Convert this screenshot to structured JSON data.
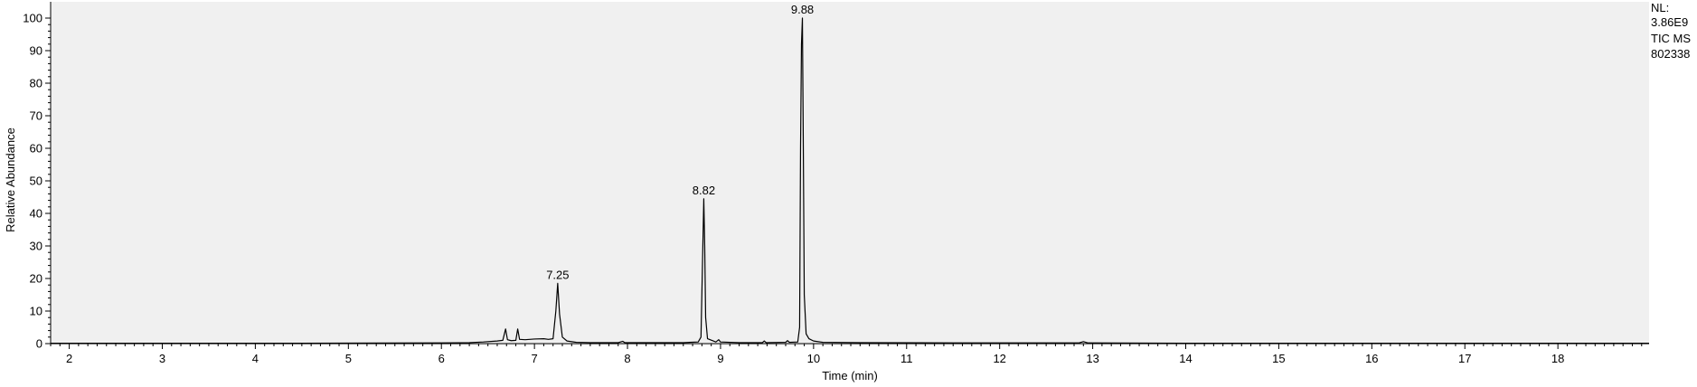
{
  "chart_data": {
    "type": "line",
    "xlabel": "Time (min)",
    "ylabel": "Relative Abundance",
    "xlim": [
      1.8,
      18.98
    ],
    "ylim": [
      0,
      100
    ],
    "xticks": [
      2,
      3,
      4,
      5,
      6,
      7,
      8,
      9,
      10,
      11,
      12,
      13,
      14,
      15,
      16,
      17,
      18
    ],
    "yticks": [
      0,
      10,
      20,
      30,
      40,
      50,
      60,
      70,
      80,
      90,
      100
    ],
    "info_text": [
      "NL:",
      "3.86E9",
      "TIC  MS",
      "802338"
    ],
    "colors": {
      "plot_background": "#f0f0f0",
      "trace": "#000000",
      "axis": "#000000"
    },
    "peak_labels": [
      {
        "label": "7.25",
        "x": 7.25,
        "y": 18.5
      },
      {
        "label": "8.82",
        "x": 8.82,
        "y": 44.5
      },
      {
        "label": "9.88",
        "x": 9.88,
        "y": 100
      }
    ],
    "series": [
      {
        "values": [
          [
            1.8,
            0.1
          ],
          [
            3.0,
            0.1
          ],
          [
            4.5,
            0.1
          ],
          [
            6.0,
            0.2
          ],
          [
            6.3,
            0.3
          ],
          [
            6.45,
            0.5
          ],
          [
            6.6,
            0.8
          ],
          [
            6.66,
            1.0
          ],
          [
            6.69,
            4.5
          ],
          [
            6.71,
            1.2
          ],
          [
            6.75,
            0.9
          ],
          [
            6.8,
            1.0
          ],
          [
            6.82,
            4.5
          ],
          [
            6.84,
            1.3
          ],
          [
            6.9,
            1.2
          ],
          [
            7.0,
            1.4
          ],
          [
            7.1,
            1.5
          ],
          [
            7.15,
            1.3
          ],
          [
            7.2,
            1.5
          ],
          [
            7.23,
            10.0
          ],
          [
            7.25,
            18.5
          ],
          [
            7.27,
            9.0
          ],
          [
            7.3,
            2.0
          ],
          [
            7.35,
            0.8
          ],
          [
            7.45,
            0.4
          ],
          [
            7.6,
            0.3
          ],
          [
            7.9,
            0.3
          ],
          [
            7.95,
            0.7
          ],
          [
            7.97,
            0.3
          ],
          [
            8.3,
            0.3
          ],
          [
            8.6,
            0.3
          ],
          [
            8.76,
            0.5
          ],
          [
            8.79,
            2.0
          ],
          [
            8.81,
            30.0
          ],
          [
            8.82,
            44.5
          ],
          [
            8.83,
            30.0
          ],
          [
            8.84,
            8.0
          ],
          [
            8.86,
            1.5
          ],
          [
            8.95,
            0.5
          ],
          [
            8.98,
            1.2
          ],
          [
            9.0,
            0.5
          ],
          [
            9.2,
            0.3
          ],
          [
            9.45,
            0.3
          ],
          [
            9.47,
            0.8
          ],
          [
            9.49,
            0.3
          ],
          [
            9.7,
            0.4
          ],
          [
            9.72,
            0.9
          ],
          [
            9.74,
            0.4
          ],
          [
            9.83,
            0.5
          ],
          [
            9.85,
            5.0
          ],
          [
            9.86,
            60.0
          ],
          [
            9.87,
            92.0
          ],
          [
            9.88,
            100.0
          ],
          [
            9.89,
            60.0
          ],
          [
            9.9,
            15.0
          ],
          [
            9.92,
            3.0
          ],
          [
            9.95,
            1.5
          ],
          [
            10.0,
            0.8
          ],
          [
            10.1,
            0.4
          ],
          [
            10.5,
            0.3
          ],
          [
            11.5,
            0.2
          ],
          [
            12.85,
            0.2
          ],
          [
            12.9,
            0.6
          ],
          [
            12.95,
            0.2
          ],
          [
            14.0,
            0.1
          ],
          [
            16.0,
            0.1
          ],
          [
            18.98,
            0.1
          ]
        ]
      }
    ]
  }
}
